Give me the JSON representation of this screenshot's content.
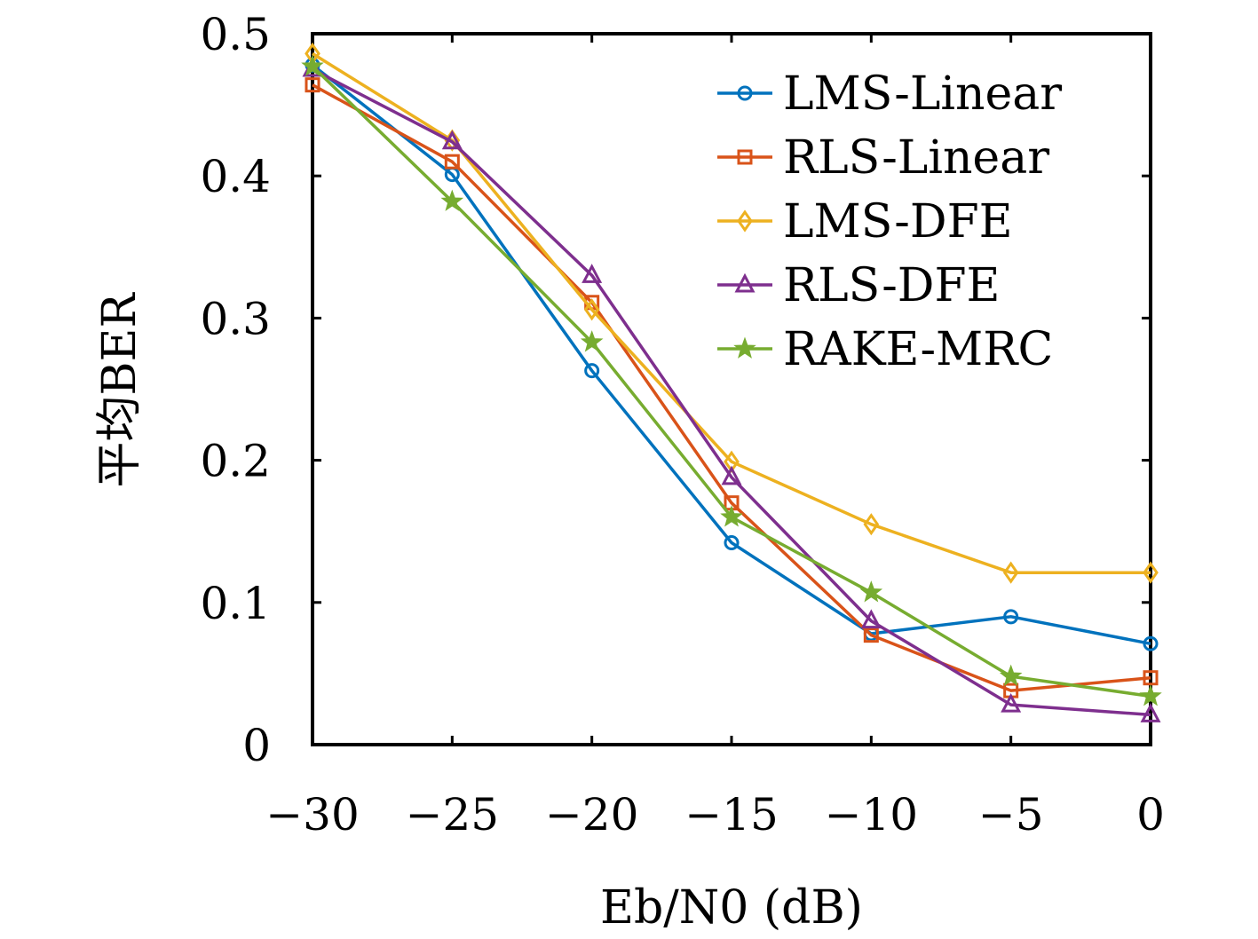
{
  "chart_data": {
    "type": "line",
    "title": "",
    "xlabel": "Eb/N0 (dB)",
    "ylabel": "平均BER",
    "x": [
      -30,
      -25,
      -20,
      -15,
      -10,
      -5,
      0
    ],
    "xlim": [
      -30,
      0
    ],
    "ylim": [
      0,
      0.5
    ],
    "xticks": [
      -30,
      -25,
      -20,
      -15,
      -10,
      -5,
      0
    ],
    "xtick_labels": [
      "−30",
      "−25",
      "−20",
      "−15",
      "−10",
      "−5",
      "0"
    ],
    "yticks": [
      0,
      0.1,
      0.2,
      0.3,
      0.4,
      0.5
    ],
    "ytick_labels": [
      "0",
      "0.1",
      "0.2",
      "0.3",
      "0.4",
      "0.5"
    ],
    "grid": false,
    "legend_position": "top-right",
    "series": [
      {
        "name": "LMS-Linear",
        "color": "#0072BD",
        "marker": "circle",
        "values": [
          0.478,
          0.401,
          0.263,
          0.142,
          0.078,
          0.09,
          0.071
        ]
      },
      {
        "name": "RLS-Linear",
        "color": "#D95319",
        "marker": "square",
        "values": [
          0.464,
          0.41,
          0.311,
          0.17,
          0.077,
          0.038,
          0.047
        ]
      },
      {
        "name": "LMS-DFE",
        "color": "#EDB120",
        "marker": "diamond",
        "values": [
          0.486,
          0.425,
          0.306,
          0.199,
          0.155,
          0.121,
          0.121
        ]
      },
      {
        "name": "RLS-DFE",
        "color": "#7E2F8E",
        "marker": "triangle",
        "values": [
          0.475,
          0.424,
          0.33,
          0.188,
          0.087,
          0.028,
          0.021
        ]
      },
      {
        "name": "RAKE-MRC",
        "color": "#77AC30",
        "marker": "star",
        "values": [
          0.477,
          0.382,
          0.283,
          0.16,
          0.107,
          0.048,
          0.034
        ]
      }
    ]
  }
}
